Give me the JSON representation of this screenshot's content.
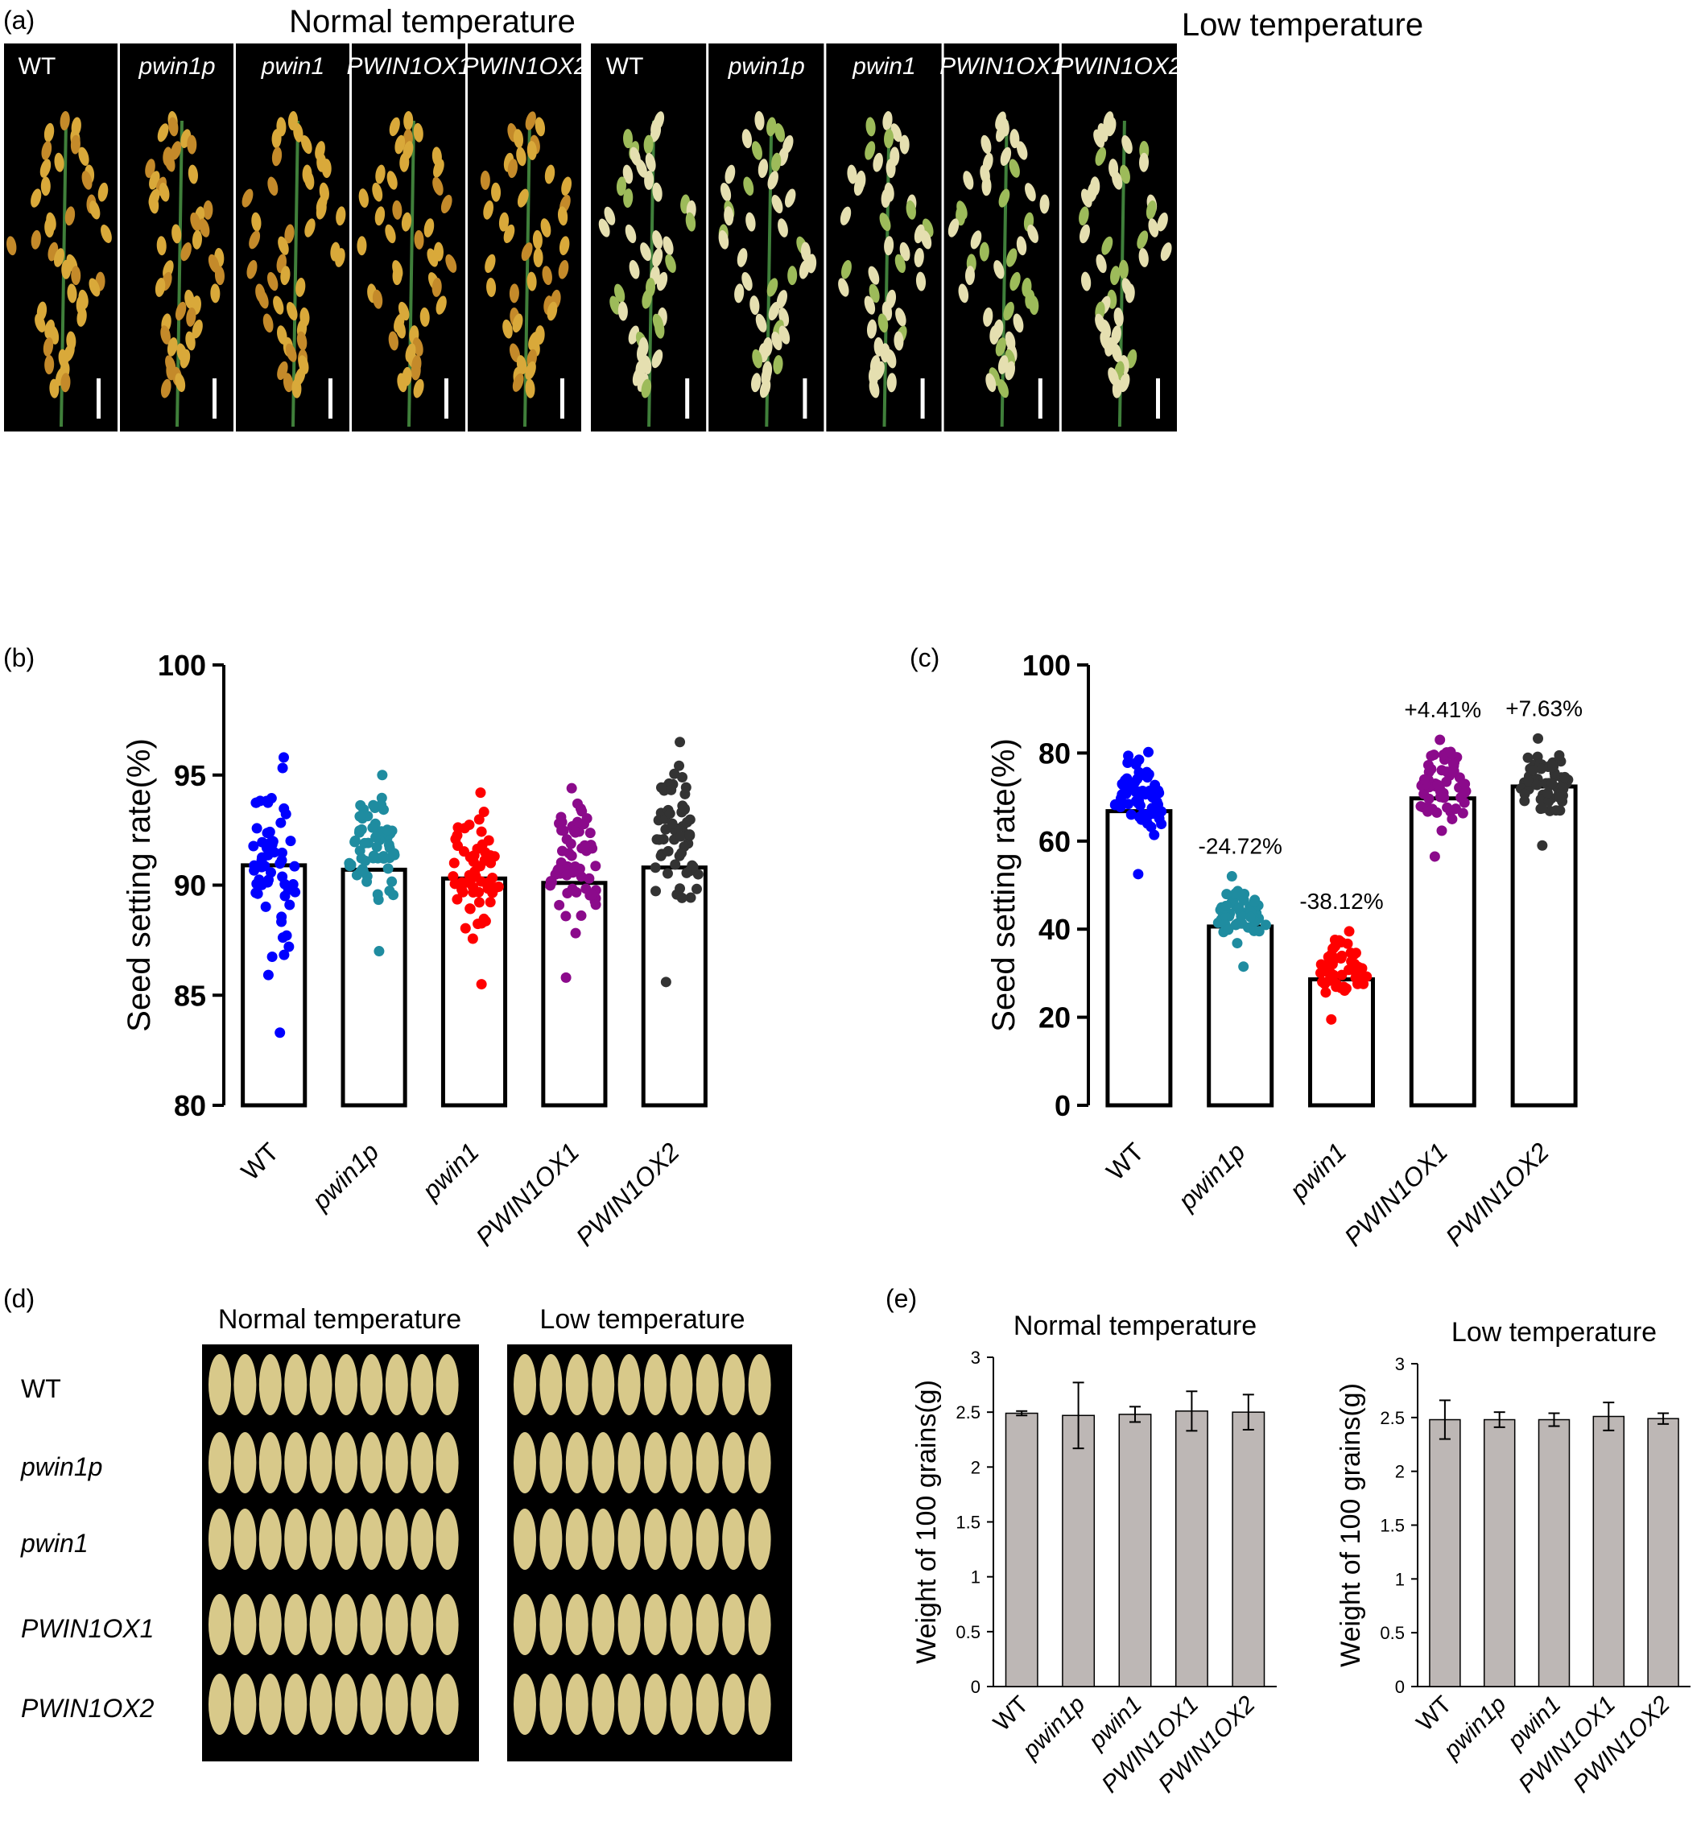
{
  "panels": {
    "a": "(a)",
    "b": "(b)",
    "c": "(c)",
    "d": "(d)",
    "e": "(e)"
  },
  "conditions": {
    "normal": "Normal temperature",
    "low": "Low temperature"
  },
  "genotypes": [
    "WT",
    "pwin1p",
    "pwin1",
    "PWIN1OX1",
    "PWIN1OX2"
  ],
  "genotype_italic": [
    false,
    true,
    true,
    true,
    true
  ],
  "colors": {
    "WT": "#0000ff",
    "pwin1p": "#1f8ca0",
    "pwin1": "#ff0000",
    "PWIN1OX1": "#8b0a8b",
    "PWIN1OX2": "#333333",
    "grain_bar": "#bdb7b5",
    "photo_bg": "#000000",
    "grain": "#d8c98a"
  },
  "chart_data": [
    {
      "id": "b",
      "type": "bar",
      "categories": [
        "WT",
        "pwin1p",
        "pwin1",
        "PWIN1OX1",
        "PWIN1OX2"
      ],
      "values": [
        90.9,
        90.7,
        90.3,
        90.1,
        90.8
      ],
      "point_ranges": [
        [
          83.3,
          95.8
        ],
        [
          87.0,
          95.0
        ],
        [
          85.5,
          94.2
        ],
        [
          85.8,
          94.4
        ],
        [
          85.6,
          96.5
        ]
      ],
      "ylabel": "Seed setting rate(%)",
      "ylim": [
        80,
        100
      ],
      "yticks": [
        80,
        85,
        90,
        95,
        100
      ],
      "grid": false,
      "annotations": []
    },
    {
      "id": "c",
      "type": "bar",
      "categories": [
        "WT",
        "pwin1p",
        "pwin1",
        "PWIN1OX1",
        "PWIN1OX2"
      ],
      "values": [
        66.8,
        40.6,
        28.6,
        69.7,
        72.4
      ],
      "point_ranges": [
        [
          52.5,
          80.2
        ],
        [
          31.5,
          52.0
        ],
        [
          19.5,
          39.5
        ],
        [
          56.5,
          83.0
        ],
        [
          59.0,
          83.3
        ]
      ],
      "ylabel": "Seed setting rate(%)",
      "ylim": [
        0,
        100
      ],
      "yticks": [
        0,
        20,
        40,
        60,
        80,
        100
      ],
      "grid": false,
      "annotations": [
        "",
        "-24.72%",
        "-38.12%",
        "+4.41%",
        "+7.63%"
      ]
    },
    {
      "id": "e1",
      "type": "bar",
      "title": "Normal temperature",
      "categories": [
        "WT",
        "pwin1p",
        "pwin1",
        "PWIN1OX1",
        "PWIN1OX2"
      ],
      "values": [
        2.49,
        2.47,
        2.48,
        2.51,
        2.5
      ],
      "errors": [
        0.02,
        0.3,
        0.07,
        0.18,
        0.16
      ],
      "ylabel": "Weight of 100 grains(g)",
      "ylim": [
        0,
        3
      ],
      "yticks": [
        0,
        0.5,
        1,
        1.5,
        2,
        2.5,
        3
      ],
      "grid": false
    },
    {
      "id": "e2",
      "type": "bar",
      "title": "Low temperature",
      "categories": [
        "WT",
        "pwin1p",
        "pwin1",
        "PWIN1OX1",
        "PWIN1OX2"
      ],
      "values": [
        2.48,
        2.48,
        2.48,
        2.51,
        2.49
      ],
      "errors": [
        0.18,
        0.07,
        0.06,
        0.13,
        0.05
      ],
      "ylabel": "Weight of 100 grains(g)",
      "ylim": [
        0,
        3
      ],
      "yticks": [
        0,
        0.5,
        1,
        1.5,
        2,
        2.5,
        3
      ],
      "grid": false
    }
  ]
}
